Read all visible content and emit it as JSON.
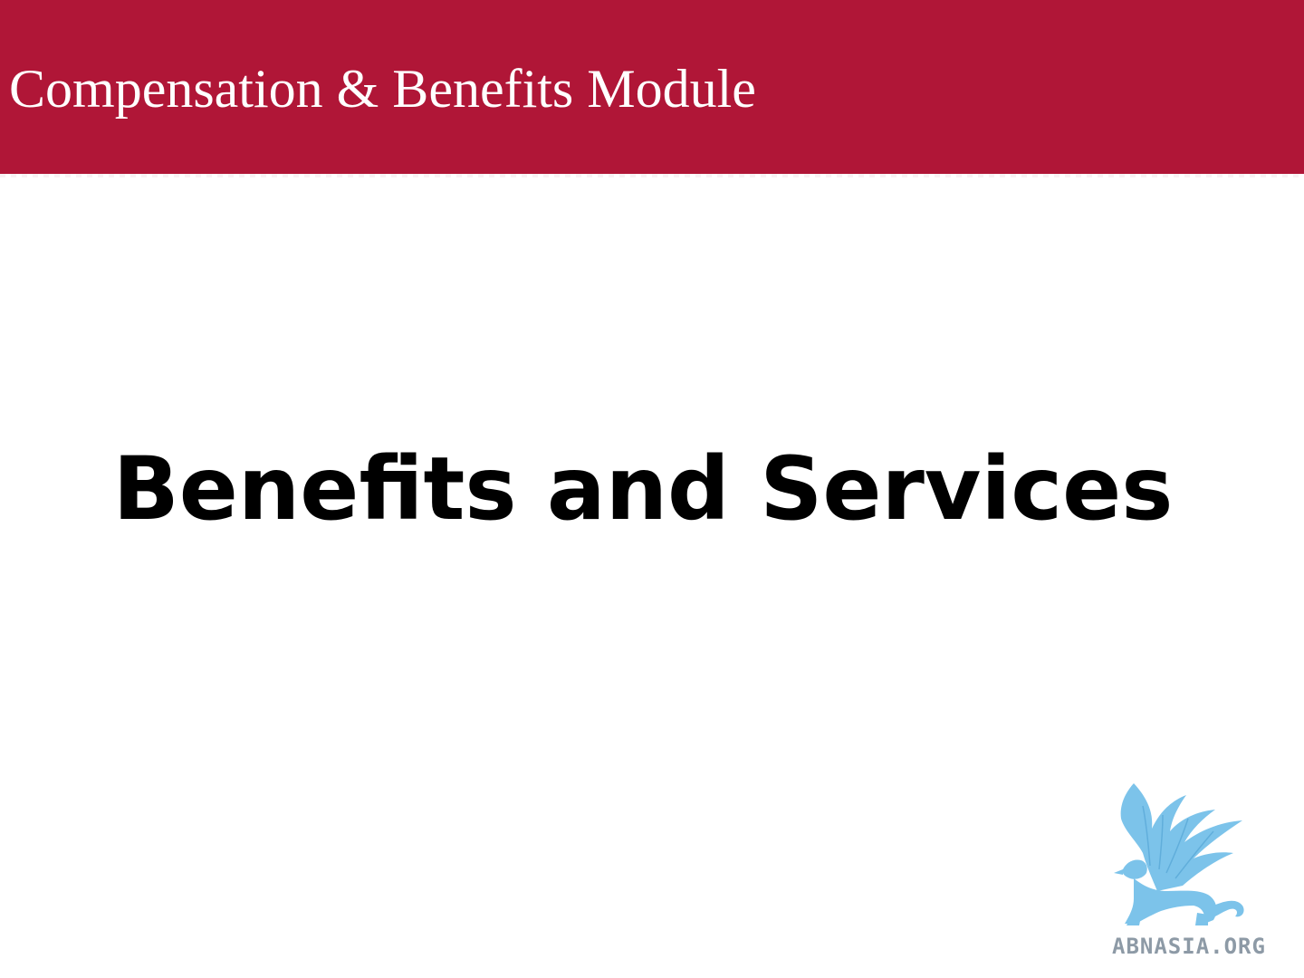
{
  "header": {
    "title": "Compensation & Benefits Module",
    "background_color": "#b01637",
    "text_color": "#ffffff"
  },
  "main": {
    "title": "Benefits and Services",
    "text_color": "#000000"
  },
  "logo": {
    "text": "ABNASIA.ORG",
    "icon": "griffin-logo-icon",
    "color": "#7cc3ea"
  }
}
